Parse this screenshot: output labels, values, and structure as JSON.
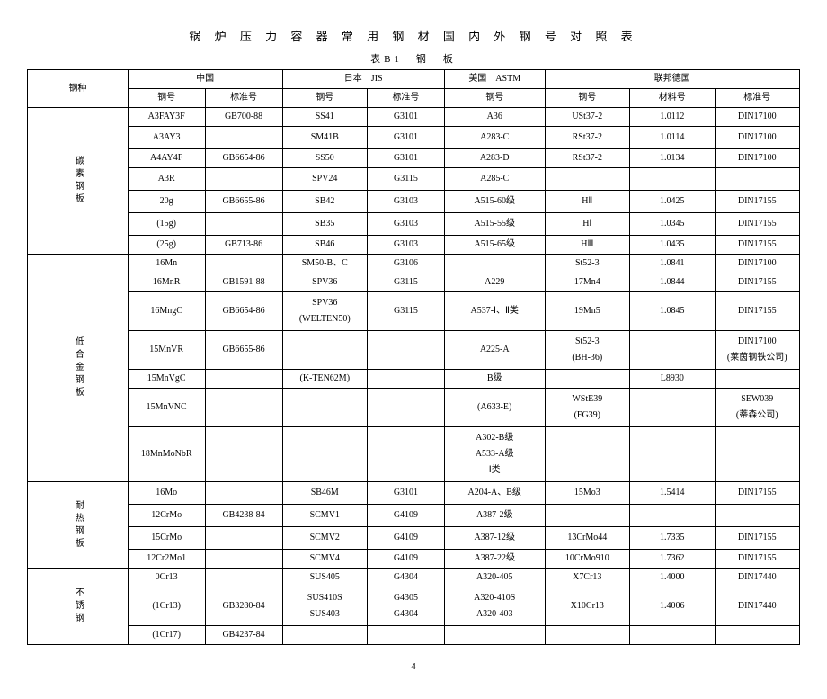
{
  "title": "锅 炉 压 力 容 器 常 用 钢 材 国 内 外 钢 号 对 照 表",
  "subtitle": "表B1　钢　板",
  "headers": {
    "steel_type": "钢种",
    "china": "中国",
    "japan": "日本　JIS",
    "usa": "美国　ASTM",
    "germany": "联邦德国",
    "grade": "钢号",
    "std": "标准号",
    "mat": "材料号"
  },
  "cat1": "碳素钢板",
  "cat2": "低合金钢板",
  "cat3": "耐热钢板",
  "cat4": "不锈钢",
  "r": {
    "c1a": [
      "A3FAY3F",
      "GB700-88",
      "SS41",
      "G3101",
      "A36",
      "USt37-2",
      "1.0112",
      "DIN17100"
    ],
    "c1b": [
      "A3AY3",
      "",
      "SM41B",
      "G3101",
      "A283-C",
      "RSt37-2",
      "1.0114",
      "DIN17100"
    ],
    "c1c": [
      "A4AY4F",
      "GB6654-86",
      "SS50",
      "G3101",
      "A283-D",
      "RSt37-2",
      "1.0134",
      "DIN17100"
    ],
    "c1d": [
      "A3R",
      "",
      "SPV24",
      "G3115",
      "A285-C",
      "",
      "",
      ""
    ],
    "c1e": [
      "20g",
      "GB6655-86",
      "SB42",
      "G3103",
      "A515-60级",
      "HⅡ",
      "1.0425",
      "DIN17155"
    ],
    "c1f": [
      "(15g)",
      "",
      "SB35",
      "G3103",
      "A515-55级",
      "HⅠ",
      "1.0345",
      "DIN17155"
    ],
    "c1g": [
      "(25g)",
      "GB713-86",
      "SB46",
      "G3103",
      "A515-65级",
      "HⅢ",
      "1.0435",
      "DIN17155"
    ],
    "c2a": [
      "16Mn",
      "",
      "SM50-B、C",
      "G3106",
      "",
      "St52-3",
      "1.0841",
      "DIN17100"
    ],
    "c2b": [
      "16MnR",
      "GB1591-88",
      "SPV36",
      "G3115",
      "A229",
      "17Mn4",
      "1.0844",
      "DIN17155"
    ],
    "c2c": [
      "16MngC",
      "GB6654-86",
      "SPV36\n(WELTEN50)",
      "G3115",
      "A537-Ⅰ、Ⅱ类",
      "19Mn5",
      "1.0845",
      "DIN17155"
    ],
    "c2d": [
      "15MnVR",
      "GB6655-86",
      "",
      "",
      "A225-A",
      "St52-3\n(BH-36)",
      "",
      "DIN17100\n(莱茵钢铁公司)"
    ],
    "c2e": [
      "15MnVgC",
      "",
      "(K-TEN62M)",
      "",
      "B级",
      "",
      "L8930",
      ""
    ],
    "c2f": [
      "15MnVNC",
      "",
      "",
      "",
      "(A633-E)",
      "WStE39\n(FG39)",
      "",
      "SEW039\n(蒂森公司)"
    ],
    "c2g": [
      "18MnMoNbR",
      "",
      "",
      "",
      "A302-B级\nA533-A级\nⅠ类",
      "",
      "",
      ""
    ],
    "c3a": [
      "16Mo",
      "",
      "SB46M",
      "G3101",
      "A204-A、B级",
      "15Mo3",
      "1.5414",
      "DIN17155"
    ],
    "c3b": [
      "12CrMo",
      "GB4238-84",
      "SCMV1",
      "G4109",
      "A387-2级",
      "",
      "",
      ""
    ],
    "c3c": [
      "15CrMo",
      "",
      "SCMV2",
      "G4109",
      "A387-12级",
      "13CrMo44",
      "1.7335",
      "DIN17155"
    ],
    "c3d": [
      "12Cr2Mo1",
      "",
      "SCMV4",
      "G4109",
      "A387-22级",
      "10CrMo910",
      "1.7362",
      "DIN17155"
    ],
    "c4a": [
      "0Cr13",
      "",
      "SUS405",
      "G4304",
      "A320-405",
      "X7Cr13",
      "1.4000",
      "DIN17440"
    ],
    "c4b": [
      "(1Cr13)",
      "GB3280-84",
      "SUS410S\nSUS403",
      "G4305\nG4304",
      "A320-410S\nA320-403",
      "X10Cr13",
      "1.4006",
      "DIN17440"
    ],
    "c4c": [
      "(1Cr17)",
      "GB4237-84",
      "",
      "",
      "",
      "",
      "",
      ""
    ]
  },
  "page": "4"
}
